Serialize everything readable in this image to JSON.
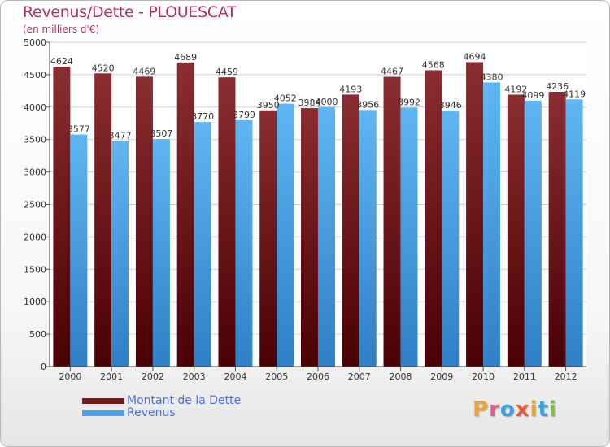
{
  "title": "Revenus/Dette - PLOUESCAT",
  "subtitle": "(en milliers d'€)",
  "logo": "Proxiti",
  "chart_data": {
    "type": "bar",
    "categories": [
      "2000",
      "2001",
      "2002",
      "2003",
      "2004",
      "2005",
      "2006",
      "2007",
      "2008",
      "2009",
      "2010",
      "2011",
      "2012"
    ],
    "series": [
      {
        "name": "Montant de la Dette",
        "color": "#7b1f22",
        "values": [
          4624,
          4520,
          4469,
          4689,
          4459,
          3950,
          3984,
          4193,
          4467,
          4568,
          4694,
          4192,
          4236
        ]
      },
      {
        "name": "Revenus",
        "color": "#4aa3e8",
        "values": [
          3577,
          3477,
          3507,
          3770,
          3799,
          4052,
          4000,
          3956,
          3992,
          3946,
          4380,
          4099,
          4119
        ]
      }
    ],
    "ylim": [
      0,
      5000
    ],
    "yticks": [
      0,
      500,
      1000,
      1500,
      2000,
      2500,
      3000,
      3500,
      4000,
      4500,
      5000
    ],
    "grid": true,
    "legend_position": "bottom-left"
  }
}
